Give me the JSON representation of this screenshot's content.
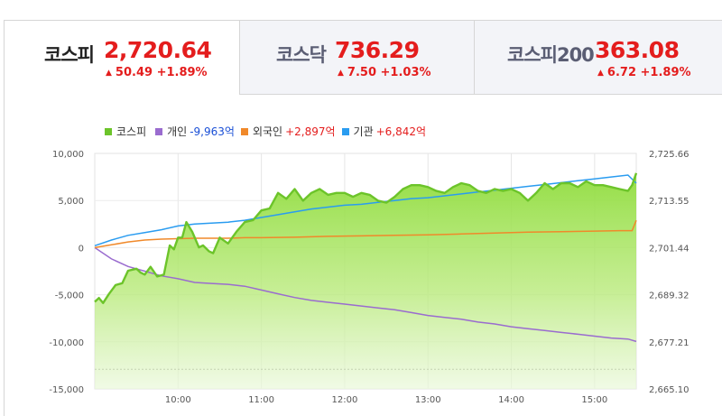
{
  "tabs": [
    {
      "name": "코스피",
      "value": "2,720.64",
      "change": "50.49",
      "pct": "+1.89%",
      "arrow": "▲"
    },
    {
      "name": "코스닥",
      "value": "736.29",
      "change": "7.50",
      "pct": "+1.03%",
      "arrow": "▲"
    },
    {
      "name": "코스피200",
      "value": "363.08",
      "change": "6.72",
      "pct": "+1.89%",
      "arrow": "▲"
    }
  ],
  "legend": [
    {
      "label": "코스피",
      "value": "",
      "color": "#6cc42a"
    },
    {
      "label": "개인",
      "value": "-9,963억",
      "color": "#9a6ccf",
      "value_color": "#1a4fd6"
    },
    {
      "label": "외국인",
      "value": "+2,897억",
      "color": "#f0892a",
      "value_color": "#e41d1d"
    },
    {
      "label": "기관",
      "value": "+6,842억",
      "color": "#2a9cf0",
      "value_color": "#e41d1d"
    }
  ],
  "chart_data": {
    "type": "line",
    "x_ticks": [
      "10:00",
      "11:00",
      "12:00",
      "13:00",
      "14:00",
      "15:00"
    ],
    "y_left_ticks": [
      "10,000",
      "5,000",
      "0",
      "-5,000",
      "-10,000",
      "-15,000"
    ],
    "y_left_values": [
      10000,
      5000,
      0,
      -5000,
      -10000,
      -15000
    ],
    "y_right_ticks": [
      "2,725.66",
      "2,713.55",
      "2,701.44",
      "2,689.32",
      "2,677.21",
      "2,665.10"
    ],
    "y_right_values": [
      2725.66,
      2713.55,
      2701.44,
      2689.32,
      2677.21,
      2665.1
    ],
    "x_range_hours": [
      9.0,
      15.5
    ],
    "kospi_baseline": 2670.15,
    "series": [
      {
        "name": "코스피",
        "axis": "right",
        "color": "#6cc42a",
        "x": [
          9.0,
          9.05,
          9.1,
          9.17,
          9.25,
          9.33,
          9.4,
          9.5,
          9.55,
          9.6,
          9.67,
          9.75,
          9.83,
          9.9,
          9.95,
          10.0,
          10.05,
          10.1,
          10.17,
          10.25,
          10.3,
          10.37,
          10.42,
          10.5,
          10.6,
          10.7,
          10.8,
          10.9,
          11.0,
          11.1,
          11.2,
          11.3,
          11.4,
          11.5,
          11.6,
          11.7,
          11.8,
          11.9,
          12.0,
          12.1,
          12.2,
          12.3,
          12.4,
          12.5,
          12.6,
          12.7,
          12.8,
          12.9,
          13.0,
          13.1,
          13.2,
          13.3,
          13.4,
          13.5,
          13.6,
          13.7,
          13.8,
          13.9,
          14.0,
          14.1,
          14.2,
          14.3,
          14.4,
          14.5,
          14.6,
          14.7,
          14.8,
          14.9,
          15.0,
          15.1,
          15.2,
          15.3,
          15.4,
          15.45,
          15.5
        ],
        "values": [
          2687.5,
          2688.5,
          2687.2,
          2689.5,
          2691.8,
          2692.3,
          2695.5,
          2696.0,
          2695.0,
          2694.5,
          2696.5,
          2694.0,
          2694.5,
          2702.0,
          2701.0,
          2704.0,
          2704.0,
          2708.0,
          2705.5,
          2701.5,
          2702.0,
          2700.5,
          2700.0,
          2704.0,
          2702.5,
          2705.5,
          2708.0,
          2708.5,
          2711.0,
          2711.5,
          2715.5,
          2714.0,
          2716.5,
          2713.5,
          2715.5,
          2716.5,
          2715.0,
          2715.5,
          2715.5,
          2714.5,
          2715.5,
          2715.0,
          2713.5,
          2713.0,
          2714.5,
          2716.5,
          2717.5,
          2717.5,
          2717.0,
          2716.0,
          2715.5,
          2717.0,
          2718.0,
          2717.5,
          2716.0,
          2715.5,
          2716.5,
          2716.0,
          2716.5,
          2715.5,
          2713.5,
          2715.5,
          2718.0,
          2716.5,
          2718.0,
          2718.0,
          2717.0,
          2718.5,
          2717.5,
          2717.5,
          2717.0,
          2716.5,
          2716.0,
          2717.5,
          2720.6
        ]
      },
      {
        "name": "개인",
        "axis": "left",
        "color": "#9a6ccf",
        "x": [
          9.0,
          9.2,
          9.4,
          9.6,
          9.8,
          10.0,
          10.2,
          10.4,
          10.6,
          10.8,
          11.0,
          11.2,
          11.4,
          11.6,
          11.8,
          12.0,
          12.2,
          12.4,
          12.6,
          12.8,
          13.0,
          13.2,
          13.4,
          13.6,
          13.8,
          14.0,
          14.2,
          14.4,
          14.6,
          14.8,
          15.0,
          15.2,
          15.4,
          15.5
        ],
        "values": [
          0,
          -1200,
          -2000,
          -2500,
          -3000,
          -3300,
          -3700,
          -3800,
          -3900,
          -4100,
          -4500,
          -4900,
          -5300,
          -5600,
          -5800,
          -6000,
          -6200,
          -6400,
          -6600,
          -6900,
          -7200,
          -7400,
          -7600,
          -7900,
          -8100,
          -8400,
          -8600,
          -8800,
          -9000,
          -9200,
          -9400,
          -9600,
          -9700,
          -9963
        ]
      },
      {
        "name": "외국인",
        "axis": "left",
        "color": "#f0892a",
        "x": [
          9.0,
          9.2,
          9.4,
          9.6,
          9.8,
          10.0,
          10.2,
          10.4,
          10.6,
          10.8,
          11.0,
          11.4,
          11.8,
          12.2,
          12.6,
          13.0,
          13.4,
          13.8,
          14.2,
          14.6,
          15.0,
          15.3,
          15.45,
          15.5
        ],
        "values": [
          0,
          300,
          600,
          800,
          900,
          950,
          1000,
          1000,
          1000,
          1050,
          1050,
          1100,
          1200,
          1250,
          1300,
          1350,
          1450,
          1550,
          1650,
          1700,
          1750,
          1800,
          1800,
          2897
        ]
      },
      {
        "name": "기관",
        "axis": "left",
        "color": "#2a9cf0",
        "x": [
          9.0,
          9.2,
          9.4,
          9.6,
          9.8,
          10.0,
          10.2,
          10.4,
          10.6,
          10.8,
          11.0,
          11.2,
          11.4,
          11.6,
          11.8,
          12.0,
          12.2,
          12.4,
          12.6,
          12.8,
          13.0,
          13.2,
          13.4,
          13.6,
          13.8,
          14.0,
          14.2,
          14.4,
          14.6,
          14.8,
          15.0,
          15.2,
          15.4,
          15.5
        ],
        "values": [
          200,
          800,
          1300,
          1600,
          1900,
          2300,
          2500,
          2600,
          2700,
          2900,
          3200,
          3500,
          3800,
          4100,
          4300,
          4500,
          4600,
          4800,
          5000,
          5200,
          5300,
          5500,
          5700,
          5900,
          6100,
          6300,
          6500,
          6700,
          6900,
          7100,
          7300,
          7500,
          7700,
          6842
        ]
      }
    ]
  }
}
